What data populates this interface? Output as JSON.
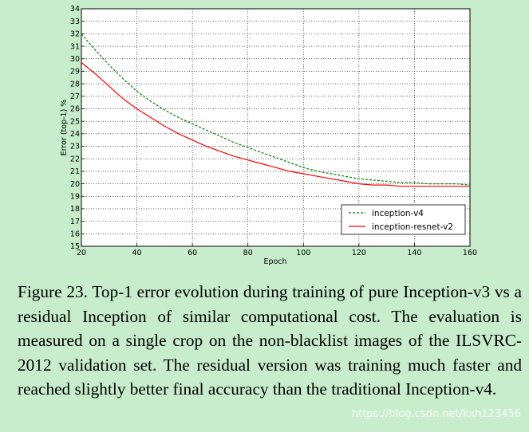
{
  "chart_data": {
    "type": "line",
    "title": "",
    "xlabel": "Epoch",
    "ylabel": "Error (top-1) %",
    "xlim": [
      20,
      160
    ],
    "ylim": [
      15,
      34
    ],
    "x_ticks": [
      20,
      40,
      60,
      80,
      100,
      120,
      140,
      160
    ],
    "y_ticks": [
      15,
      16,
      17,
      18,
      19,
      20,
      21,
      22,
      23,
      24,
      25,
      26,
      27,
      28,
      29,
      30,
      31,
      32,
      33,
      34
    ],
    "grid": true,
    "legend_position": "lower-right",
    "series": [
      {
        "name": "inception-v4",
        "color": "#008000",
        "style": "dashed",
        "x": [
          20,
          25,
          30,
          35,
          40,
          45,
          50,
          55,
          60,
          65,
          70,
          75,
          80,
          85,
          90,
          95,
          100,
          105,
          110,
          115,
          120,
          125,
          130,
          135,
          140,
          145,
          150,
          155,
          160
        ],
        "values": [
          32.0,
          30.7,
          29.5,
          28.4,
          27.4,
          26.6,
          25.9,
          25.3,
          24.8,
          24.3,
          23.8,
          23.3,
          22.9,
          22.5,
          22.1,
          21.7,
          21.3,
          21.0,
          20.8,
          20.6,
          20.4,
          20.3,
          20.2,
          20.1,
          20.1,
          20.0,
          20.0,
          20.0,
          19.9
        ]
      },
      {
        "name": "inception-resnet-v2",
        "color": "#ff0000",
        "style": "solid",
        "x": [
          20,
          25,
          30,
          35,
          40,
          45,
          50,
          55,
          60,
          65,
          70,
          75,
          80,
          85,
          90,
          95,
          100,
          105,
          110,
          115,
          120,
          125,
          130,
          135,
          140,
          145,
          150,
          155,
          160
        ],
        "values": [
          29.7,
          28.8,
          27.8,
          26.8,
          26.0,
          25.3,
          24.6,
          24.0,
          23.5,
          23.0,
          22.6,
          22.2,
          21.9,
          21.6,
          21.3,
          21.0,
          20.8,
          20.6,
          20.4,
          20.2,
          20.0,
          19.9,
          19.9,
          19.8,
          19.8,
          19.8,
          19.8,
          19.8,
          19.8
        ]
      }
    ]
  },
  "caption": "Figure 23. Top-1 error evolution during training of pure Inception-v3 vs a residual Inception of similar computational cost. The evaluation is measured on a single crop on the non-blacklist images of the ILSVRC-2012 validation set. The residual version was training much faster and reached slightly better final accuracy than the traditional Inception-v4.",
  "watermark": "https://blog.csdn.net/kxh123456"
}
